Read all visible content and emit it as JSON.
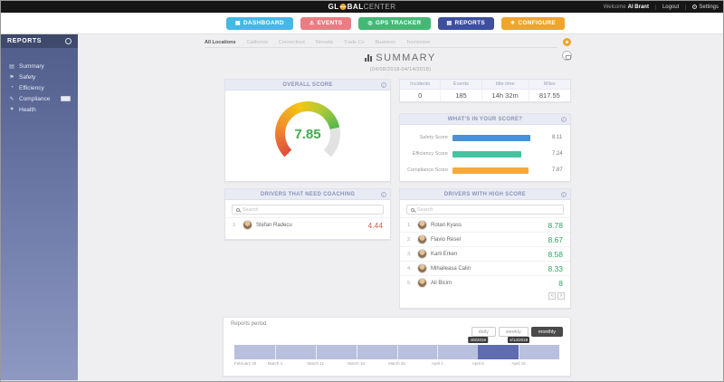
{
  "topbar": {
    "logo_pre": "GL",
    "logo_bold": "BAL",
    "logo_rest": "CENTER",
    "welcome": "Welcome",
    "user": "Al Brant",
    "logout": "Logout",
    "settings": "Settings"
  },
  "nav": {
    "items": [
      {
        "label": "DASHBOARD",
        "icon": "▦",
        "color": "#45b8e6"
      },
      {
        "label": "EVENTS",
        "icon": "⚠",
        "color": "#e87d83"
      },
      {
        "label": "GPS TRACKER",
        "icon": "◎",
        "color": "#43b976"
      },
      {
        "label": "REPORTS",
        "icon": "▤",
        "color": "#3d4f9e"
      },
      {
        "label": "CONFIGURE",
        "icon": "✳",
        "color": "#f0a42c"
      }
    ]
  },
  "sidebar": {
    "title": "REPORTS",
    "flyout_label": "REPORTS",
    "items": [
      {
        "label": "Summary",
        "icon": "▤"
      },
      {
        "label": "Safety",
        "icon": "⚑"
      },
      {
        "label": "Efficiency",
        "icon": "◔"
      },
      {
        "label": "Compliance",
        "icon": "✎"
      },
      {
        "label": "Health",
        "icon": "♥"
      }
    ]
  },
  "tabs": {
    "items": [
      "All Locations",
      "California",
      "Connecticut",
      "Nevada",
      "Trade Co",
      "Business",
      "Tennessee"
    ],
    "active": "All Locations"
  },
  "summary_header": {
    "title": "SUMMARY",
    "date_range": "(04/08/2018-04/14/2018)"
  },
  "overall_score": {
    "title": "OVERALL SCORE",
    "value": "7.85"
  },
  "stats": {
    "columns": [
      "Incidents",
      "Events",
      "Idle time",
      "Miles"
    ],
    "values": [
      "0",
      "185",
      "14h 32m",
      "817.55"
    ]
  },
  "breakdown": {
    "title": "WHAT'S IN YOUR SCORE?",
    "bars": [
      {
        "label": "Safety Score",
        "value": "8.11",
        "pct": 81,
        "color": "#4a90d2"
      },
      {
        "label": "Efficiency Score",
        "value": "7.24",
        "pct": 72,
        "color": "#45c4a0"
      },
      {
        "label": "Compliance Score",
        "value": "7.87",
        "pct": 79,
        "color": "#f5a93c"
      }
    ]
  },
  "coaching": {
    "title": "DRIVERS THAT NEED COACHING",
    "search_placeholder": "Search",
    "rows": [
      {
        "rank": "1.",
        "name": "Stefan Radecu",
        "score": "4.44"
      }
    ]
  },
  "high_score": {
    "title": "DRIVERS WITH HIGH SCORE",
    "search_placeholder": "Search",
    "prev": "‹",
    "next": "›",
    "rows": [
      {
        "rank": "1.",
        "name": "Rotari Kyass",
        "score": "8.78"
      },
      {
        "rank": "2.",
        "name": "Flavio Resel",
        "score": "8.67"
      },
      {
        "rank": "3.",
        "name": "Karli Erken",
        "score": "8.58"
      },
      {
        "rank": "4.",
        "name": "Mihaileasa Calin",
        "score": "8.33"
      },
      {
        "rank": "5.",
        "name": "Ali Bicim",
        "score": "8"
      }
    ]
  },
  "period": {
    "title": "Reports period",
    "buttons": [
      "daily",
      "weekly",
      "monthly"
    ],
    "active_button": "monthly",
    "range_start": "4/8/2018",
    "range_end": "4/14/2018",
    "axis_labels": [
      "February 25",
      "March 4",
      "March 11",
      "March 18",
      "March 25",
      "April 1",
      "April 8",
      "April 15"
    ]
  },
  "colors": {
    "score_green": "#2fa45f",
    "score_red": "#e0564f",
    "gauge_value": "#3fae49",
    "timeline_band": "#b9c0de",
    "timeline_selected": "#5f6cb0"
  },
  "misc": {
    "info_glyph": "i"
  }
}
